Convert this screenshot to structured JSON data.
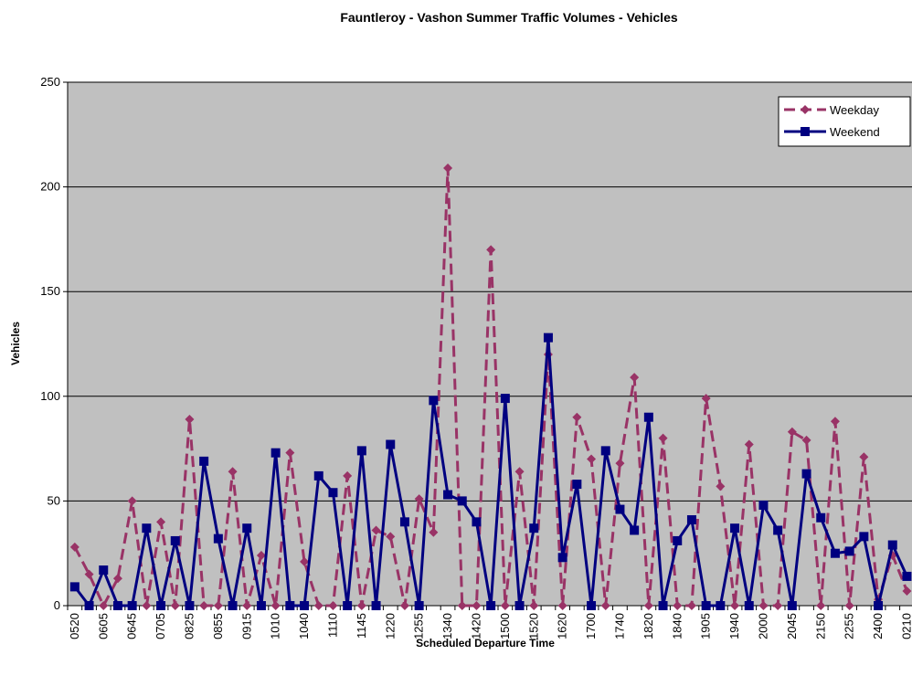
{
  "chart_data": {
    "type": "line",
    "title": "Fauntleroy - Vashon Summer Traffic Volumes - Vehicles",
    "x_label": "Scheduled Departure Time",
    "y_label": "Vehicles",
    "categories": [
      "0520",
      null,
      "0605",
      null,
      "0645",
      null,
      "0705",
      null,
      "0825",
      null,
      "0855",
      null,
      "0915",
      null,
      "1010",
      null,
      "1040",
      null,
      "1110",
      null,
      "1145",
      null,
      "1220",
      null,
      "1255",
      null,
      "1340",
      null,
      "1420",
      null,
      "1500",
      null,
      "1520",
      null,
      "1620",
      null,
      "1700",
      null,
      "1740",
      null,
      "1820",
      null,
      "1840",
      null,
      "1905",
      null,
      "1940",
      null,
      "2000",
      null,
      "2045",
      null,
      "2150",
      null,
      "2255",
      null,
      "2400",
      null,
      "0210"
    ],
    "series": [
      {
        "name": "Weekday",
        "color": "#993366",
        "dashed": true,
        "marker": "diamond",
        "values": [
          28,
          15,
          0,
          13,
          50,
          0,
          40,
          0,
          89,
          0,
          0,
          64,
          0,
          24,
          0,
          73,
          21,
          0,
          0,
          62,
          0,
          36,
          33,
          0,
          51,
          35,
          209,
          0,
          0,
          170,
          0,
          64,
          0,
          120,
          0,
          90,
          70,
          0,
          68,
          109,
          0,
          80,
          0,
          0,
          99,
          57,
          0,
          77,
          0,
          0,
          83,
          79,
          0,
          88,
          0,
          71,
          3,
          24,
          7
        ]
      },
      {
        "name": "Weekend",
        "color": "#000080",
        "dashed": false,
        "marker": "square",
        "values": [
          9,
          0,
          17,
          0,
          0,
          37,
          0,
          31,
          0,
          69,
          32,
          0,
          37,
          0,
          73,
          0,
          0,
          62,
          54,
          0,
          74,
          0,
          77,
          40,
          0,
          98,
          53,
          50,
          40,
          0,
          99,
          0,
          37,
          128,
          23,
          58,
          0,
          74,
          46,
          36,
          90,
          0,
          31,
          41,
          0,
          0,
          37,
          0,
          48,
          36,
          0,
          63,
          42,
          25,
          26,
          33,
          0,
          29,
          14
        ]
      }
    ],
    "ylim": [
      0,
      250
    ],
    "yticks": [
      0,
      50,
      100,
      150,
      200,
      250
    ],
    "grid": true,
    "legend": "top-right",
    "plot_background": "#c0c0c0"
  }
}
